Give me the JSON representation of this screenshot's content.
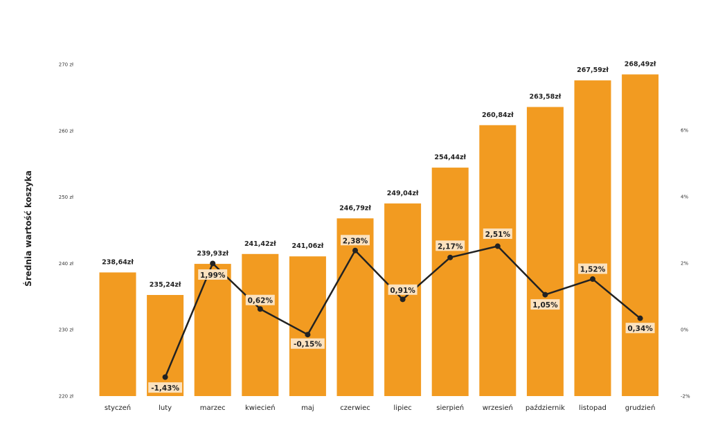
{
  "chart_data": {
    "type": "bar",
    "ylabel": "Średnia wartość koszyka",
    "categories": [
      "styczeń",
      "luty",
      "marzec",
      "kwiecień",
      "maj",
      "czerwiec",
      "lipiec",
      "sierpień",
      "wrzesień",
      "październik",
      "listopad",
      "grudzień"
    ],
    "series": [
      {
        "type": "bar",
        "axis": "left",
        "color": "#f29b21",
        "values": [
          238.64,
          235.24,
          239.93,
          241.42,
          241.06,
          246.79,
          249.04,
          254.44,
          260.84,
          263.58,
          267.59,
          268.49
        ],
        "labels": [
          "238,64zł",
          "235,24zł",
          "239,93zł",
          "241,42zł",
          "241,06zł",
          "246,79zł",
          "249,04zł",
          "254,44zł",
          "260,84zł",
          "263,58zł",
          "267,59zł",
          "268,49zł"
        ]
      },
      {
        "type": "line",
        "axis": "right",
        "color": "#222222",
        "values": [
          null,
          -1.43,
          1.99,
          0.62,
          -0.15,
          2.38,
          0.91,
          2.17,
          2.51,
          1.05,
          1.52,
          0.34
        ],
        "labels": [
          "",
          "-1,43%",
          "1,99%",
          "0,62%",
          "-0,15%",
          "2,38%",
          "0,91%",
          "2,17%",
          "2,51%",
          "1,05%",
          "1,52%",
          "0,34%"
        ]
      }
    ],
    "y_left": {
      "min": 220,
      "max": 270,
      "ticks": [
        "220 zł",
        "230 zł",
        "240 zł",
        "250 zł",
        "260 zł",
        "270 zł"
      ]
    },
    "y_right": {
      "min": -2,
      "max": 8,
      "ticks": [
        "-2%",
        "0%",
        "2%",
        "4%",
        "6%"
      ]
    },
    "grid": false,
    "legend": "none"
  }
}
